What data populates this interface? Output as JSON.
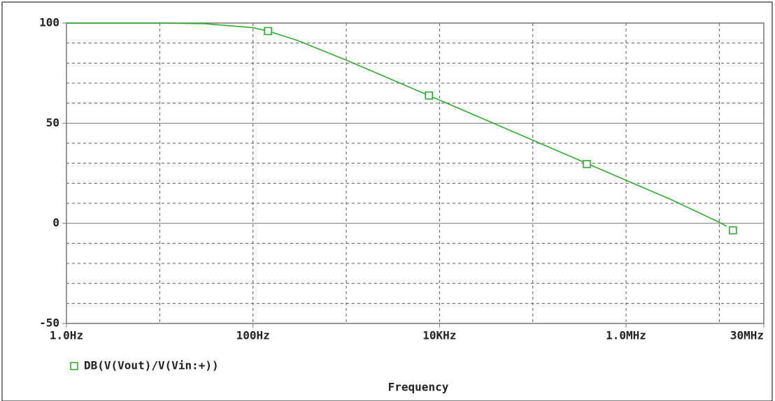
{
  "chart_data": {
    "type": "line",
    "xlabel": "Frequency",
    "xscale": "log",
    "xlim": [
      1,
      30000000
    ],
    "ylim": [
      -50,
      100
    ],
    "xticks": [
      {
        "value": 1,
        "label": "1.0Hz"
      },
      {
        "value": 100,
        "label": "100Hz"
      },
      {
        "value": 10000,
        "label": "10KHz"
      },
      {
        "value": 1000000,
        "label": "1.0MHz"
      },
      {
        "value": 30000000,
        "label": "30MHz"
      }
    ],
    "yticks": [
      -50,
      0,
      50,
      100
    ],
    "minor_xticks": [
      10,
      1000,
      100000,
      10000000
    ],
    "minor_yticks": [
      -40,
      -30,
      -20,
      -10,
      10,
      20,
      30,
      40,
      60,
      70,
      80,
      90
    ],
    "grid": true,
    "series": [
      {
        "name": "DB(V(Vout)/V(Vin:+))",
        "color": "#22aa22",
        "x": [
          1,
          10,
          30,
          100,
          145,
          300,
          1000,
          3000,
          7700,
          30000,
          100000,
          380000,
          1000000,
          3000000,
          10000000,
          12000000
        ],
        "values": [
          100,
          100,
          99.7,
          97.7,
          96.0,
          91.3,
          81.5,
          72.0,
          63.8,
          52.0,
          41.5,
          29.9,
          21.5,
          12.0,
          0.5,
          -1.5
        ],
        "markers": {
          "x": [
            145,
            7700,
            380000,
            14000000
          ],
          "values": [
            96,
            63.8,
            29.6,
            -3.5
          ]
        }
      }
    ]
  }
}
